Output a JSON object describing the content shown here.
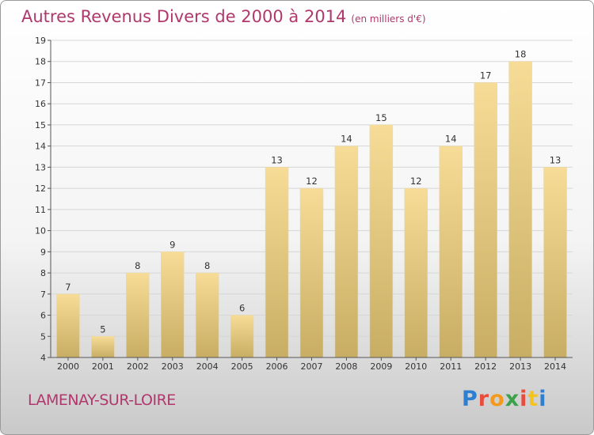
{
  "header": {
    "title": "Autres Revenus Divers de 2000 à 2014",
    "unit": "(en milliers d'€)"
  },
  "footer": {
    "commune": "LAMENAY-SUR-LOIRE",
    "logo": [
      "P",
      "r",
      "o",
      "x",
      "i",
      "t",
      "i"
    ]
  },
  "colors": {
    "title": "#b0386c",
    "bar_light": "#f6dc96",
    "bar_dark": "#c8ad64"
  },
  "chart_data": {
    "type": "bar",
    "title": "Autres Revenus Divers de 2000 à 2014",
    "xlabel": "",
    "ylabel": "",
    "categories": [
      "2000",
      "2001",
      "2002",
      "2003",
      "2004",
      "2005",
      "2006",
      "2007",
      "2008",
      "2009",
      "2010",
      "2011",
      "2012",
      "2013",
      "2014"
    ],
    "values": [
      7,
      5,
      8,
      9,
      8,
      6,
      13,
      12,
      14,
      15,
      12,
      14,
      17,
      18,
      13
    ],
    "ylim": [
      4,
      19
    ],
    "yticks": [
      4,
      5,
      6,
      7,
      8,
      9,
      10,
      11,
      12,
      13,
      14,
      15,
      16,
      17,
      18,
      19
    ],
    "grid": true,
    "legend": "none"
  }
}
